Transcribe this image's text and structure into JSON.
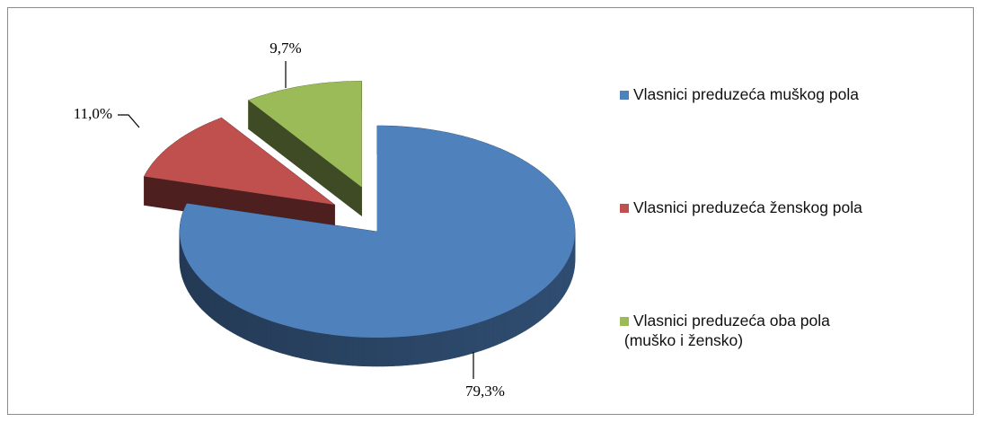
{
  "chart_data": {
    "type": "pie3d",
    "categories": [
      "Vlasnici preduzeća muškog pola",
      "Vlasnici preduzeća ženskog pola",
      "Vlasnici preduzeća oba pola\n (muško i žensko)"
    ],
    "values": [
      79.3,
      11.0,
      9.7
    ],
    "value_labels": [
      "79,3%",
      "11,0%",
      "9,7%"
    ],
    "colors": [
      "#4f81bd",
      "#c0504d",
      "#9bbb59"
    ],
    "legend": "right"
  }
}
